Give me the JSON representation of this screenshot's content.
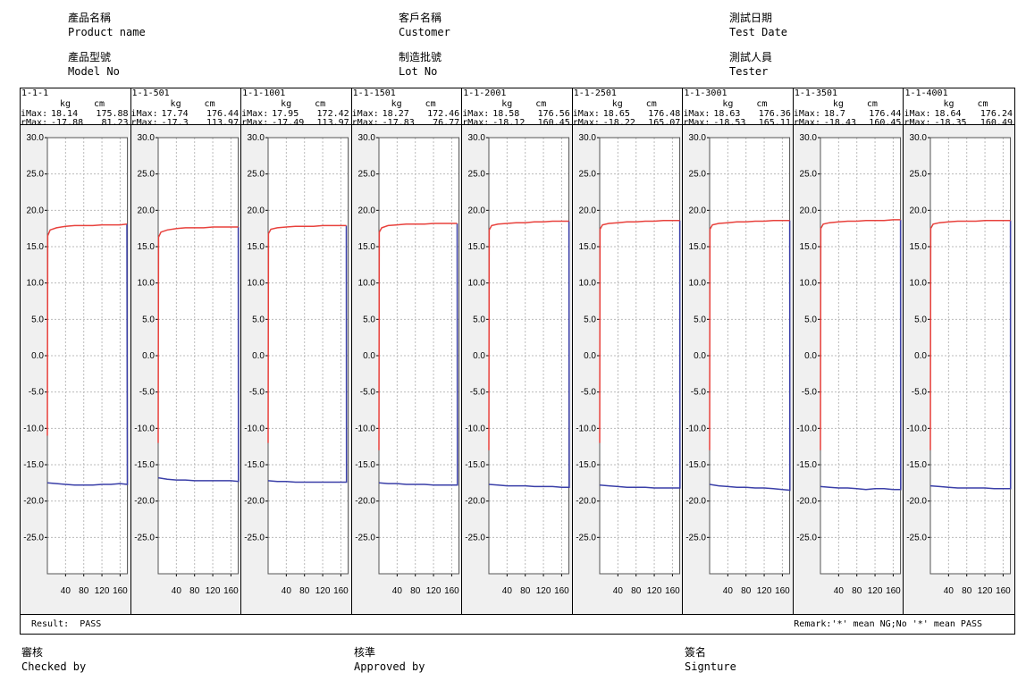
{
  "header": {
    "product_name_cn": "產品名稱",
    "product_name_en": "Product name",
    "model_no_cn": "產品型號",
    "model_no_en": "Model No",
    "customer_cn": "客戶名稱",
    "customer_en": "Customer",
    "lot_no_cn": "制造批號",
    "lot_no_en": "Lot No",
    "test_date_cn": "測試日期",
    "test_date_en": "Test Date",
    "tester_cn": "測試人員",
    "tester_en": "Tester"
  },
  "table": {
    "unit_kg": "kg",
    "unit_cm": "cm",
    "imax_label": "iMax:",
    "rmax_label": "rMax:"
  },
  "panels": [
    {
      "id": "1-1-1",
      "imax_kg": "18.14",
      "imax_cm": "175.88",
      "rmax_kg": "-17.88",
      "rmax_cm": "81.23"
    },
    {
      "id": "1-1-501",
      "imax_kg": "17.74",
      "imax_cm": "176.44",
      "rmax_kg": "-17.3",
      "rmax_cm": "113.97"
    },
    {
      "id": "1-1-1001",
      "imax_kg": "17.95",
      "imax_cm": "172.42",
      "rmax_kg": "-17.49",
      "rmax_cm": "113.97"
    },
    {
      "id": "1-1-1501",
      "imax_kg": "18.27",
      "imax_cm": "172.46",
      "rmax_kg": "-17.83",
      "rmax_cm": "76.77"
    },
    {
      "id": "1-1-2001",
      "imax_kg": "18.58",
      "imax_cm": "176.56",
      "rmax_kg": "-18.12",
      "rmax_cm": "160.45"
    },
    {
      "id": "1-1-2501",
      "imax_kg": "18.65",
      "imax_cm": "176.48",
      "rmax_kg": "-18.22",
      "rmax_cm": "165.07"
    },
    {
      "id": "1-1-3001",
      "imax_kg": "18.63",
      "imax_cm": "176.36",
      "rmax_kg": "-18.53",
      "rmax_cm": "165.11"
    },
    {
      "id": "1-1-3501",
      "imax_kg": "18.7",
      "imax_cm": "176.44",
      "rmax_kg": "-18.43",
      "rmax_cm": "160.45"
    },
    {
      "id": "1-1-4001",
      "imax_kg": "18.64",
      "imax_cm": "176.24",
      "rmax_kg": "-18.35",
      "rmax_cm": "160.49"
    }
  ],
  "chart_data": {
    "type": "line",
    "y_ticks": [
      "30.0",
      "25.0",
      "20.0",
      "15.0",
      "10.0",
      "5.0",
      "0.0",
      "-5.0",
      "-10.0",
      "-15.0",
      "-20.0",
      "-25.0"
    ],
    "x_ticks": [
      "40",
      "80",
      "120",
      "160"
    ],
    "ylim": [
      -30,
      30
    ],
    "xlim": [
      0,
      176
    ],
    "grid": true,
    "colors": {
      "insert": "#e8413c",
      "return": "#3a3fa8",
      "background": "#f0f0f0",
      "grid": "#bbbbbb"
    },
    "series": [
      {
        "values": [
          [
            0,
            -11
          ],
          [
            0.7,
            16.5
          ],
          [
            6,
            17.3
          ],
          [
            20,
            17.6
          ],
          [
            40,
            17.8
          ],
          [
            60,
            17.9
          ],
          [
            80,
            17.9
          ],
          [
            100,
            17.9
          ],
          [
            120,
            18.0
          ],
          [
            140,
            18.0
          ],
          [
            160,
            18.0
          ],
          [
            175,
            18.1
          ],
          [
            175.9,
            -17.7
          ],
          [
            160,
            -17.6
          ],
          [
            140,
            -17.7
          ],
          [
            120,
            -17.7
          ],
          [
            100,
            -17.8
          ],
          [
            80,
            -17.8
          ],
          [
            60,
            -17.8
          ],
          [
            40,
            -17.7
          ],
          [
            20,
            -17.6
          ],
          [
            0,
            -17.5
          ]
        ]
      },
      {
        "values": [
          [
            0,
            -12
          ],
          [
            0.7,
            16.3
          ],
          [
            6,
            17.0
          ],
          [
            20,
            17.3
          ],
          [
            40,
            17.5
          ],
          [
            60,
            17.6
          ],
          [
            80,
            17.6
          ],
          [
            100,
            17.6
          ],
          [
            120,
            17.7
          ],
          [
            140,
            17.7
          ],
          [
            160,
            17.7
          ],
          [
            176,
            17.7
          ],
          [
            176.4,
            -17.3
          ],
          [
            160,
            -17.2
          ],
          [
            140,
            -17.2
          ],
          [
            120,
            -17.2
          ],
          [
            100,
            -17.2
          ],
          [
            80,
            -17.2
          ],
          [
            60,
            -17.1
          ],
          [
            40,
            -17.1
          ],
          [
            20,
            -17.0
          ],
          [
            0,
            -16.8
          ]
        ]
      },
      {
        "values": [
          [
            0,
            -12
          ],
          [
            0.7,
            16.8
          ],
          [
            6,
            17.4
          ],
          [
            20,
            17.6
          ],
          [
            40,
            17.7
          ],
          [
            60,
            17.8
          ],
          [
            80,
            17.8
          ],
          [
            100,
            17.8
          ],
          [
            120,
            17.9
          ],
          [
            140,
            17.9
          ],
          [
            160,
            17.9
          ],
          [
            172,
            17.9
          ],
          [
            172.4,
            -17.4
          ],
          [
            160,
            -17.4
          ],
          [
            140,
            -17.4
          ],
          [
            120,
            -17.4
          ],
          [
            100,
            -17.4
          ],
          [
            80,
            -17.4
          ],
          [
            60,
            -17.4
          ],
          [
            40,
            -17.3
          ],
          [
            20,
            -17.3
          ],
          [
            0,
            -17.2
          ]
        ]
      },
      {
        "values": [
          [
            0,
            -13
          ],
          [
            0.7,
            17.0
          ],
          [
            6,
            17.6
          ],
          [
            20,
            17.9
          ],
          [
            40,
            18.0
          ],
          [
            60,
            18.1
          ],
          [
            80,
            18.1
          ],
          [
            100,
            18.1
          ],
          [
            120,
            18.2
          ],
          [
            140,
            18.2
          ],
          [
            160,
            18.2
          ],
          [
            172,
            18.2
          ],
          [
            172.5,
            -17.8
          ],
          [
            160,
            -17.8
          ],
          [
            140,
            -17.8
          ],
          [
            120,
            -17.8
          ],
          [
            100,
            -17.7
          ],
          [
            80,
            -17.7
          ],
          [
            60,
            -17.7
          ],
          [
            40,
            -17.6
          ],
          [
            20,
            -17.6
          ],
          [
            0,
            -17.5
          ]
        ]
      },
      {
        "values": [
          [
            0,
            -13
          ],
          [
            0.7,
            17.3
          ],
          [
            6,
            17.9
          ],
          [
            20,
            18.1
          ],
          [
            40,
            18.2
          ],
          [
            60,
            18.3
          ],
          [
            80,
            18.3
          ],
          [
            100,
            18.4
          ],
          [
            120,
            18.4
          ],
          [
            140,
            18.5
          ],
          [
            160,
            18.5
          ],
          [
            176,
            18.5
          ],
          [
            176.6,
            -18.1
          ],
          [
            160,
            -18.1
          ],
          [
            140,
            -18.0
          ],
          [
            120,
            -18.0
          ],
          [
            100,
            -18.0
          ],
          [
            80,
            -17.9
          ],
          [
            60,
            -17.9
          ],
          [
            40,
            -17.9
          ],
          [
            20,
            -17.8
          ],
          [
            0,
            -17.7
          ]
        ]
      },
      {
        "values": [
          [
            0,
            -12
          ],
          [
            0.7,
            17.4
          ],
          [
            6,
            18.0
          ],
          [
            20,
            18.2
          ],
          [
            40,
            18.3
          ],
          [
            60,
            18.4
          ],
          [
            80,
            18.4
          ],
          [
            100,
            18.5
          ],
          [
            120,
            18.5
          ],
          [
            140,
            18.6
          ],
          [
            160,
            18.6
          ],
          [
            176,
            18.6
          ],
          [
            176.5,
            -18.2
          ],
          [
            160,
            -18.2
          ],
          [
            140,
            -18.2
          ],
          [
            120,
            -18.2
          ],
          [
            100,
            -18.1
          ],
          [
            80,
            -18.1
          ],
          [
            60,
            -18.1
          ],
          [
            40,
            -18.0
          ],
          [
            20,
            -17.9
          ],
          [
            0,
            -17.8
          ]
        ]
      },
      {
        "values": [
          [
            0,
            -13
          ],
          [
            0.7,
            17.4
          ],
          [
            6,
            18.0
          ],
          [
            20,
            18.2
          ],
          [
            40,
            18.3
          ],
          [
            60,
            18.4
          ],
          [
            80,
            18.4
          ],
          [
            100,
            18.5
          ],
          [
            120,
            18.5
          ],
          [
            140,
            18.6
          ],
          [
            160,
            18.6
          ],
          [
            176,
            18.6
          ],
          [
            176.4,
            -18.5
          ],
          [
            160,
            -18.4
          ],
          [
            140,
            -18.3
          ],
          [
            120,
            -18.2
          ],
          [
            100,
            -18.2
          ],
          [
            80,
            -18.1
          ],
          [
            60,
            -18.1
          ],
          [
            40,
            -18.0
          ],
          [
            20,
            -17.9
          ],
          [
            0,
            -17.7
          ]
        ]
      },
      {
        "values": [
          [
            0,
            -13
          ],
          [
            0.7,
            17.5
          ],
          [
            6,
            18.1
          ],
          [
            20,
            18.3
          ],
          [
            40,
            18.4
          ],
          [
            60,
            18.5
          ],
          [
            80,
            18.5
          ],
          [
            100,
            18.6
          ],
          [
            120,
            18.6
          ],
          [
            140,
            18.6
          ],
          [
            160,
            18.7
          ],
          [
            176,
            18.7
          ],
          [
            176.4,
            -18.4
          ],
          [
            160,
            -18.4
          ],
          [
            140,
            -18.3
          ],
          [
            120,
            -18.3
          ],
          [
            100,
            -18.4
          ],
          [
            80,
            -18.3
          ],
          [
            60,
            -18.2
          ],
          [
            40,
            -18.2
          ],
          [
            20,
            -18.1
          ],
          [
            0,
            -18.0
          ]
        ]
      },
      {
        "values": [
          [
            0,
            -13
          ],
          [
            0.7,
            17.5
          ],
          [
            6,
            18.1
          ],
          [
            20,
            18.3
          ],
          [
            40,
            18.4
          ],
          [
            60,
            18.5
          ],
          [
            80,
            18.5
          ],
          [
            100,
            18.5
          ],
          [
            120,
            18.6
          ],
          [
            140,
            18.6
          ],
          [
            160,
            18.6
          ],
          [
            176,
            18.6
          ],
          [
            176.2,
            -18.3
          ],
          [
            160,
            -18.3
          ],
          [
            140,
            -18.3
          ],
          [
            120,
            -18.2
          ],
          [
            100,
            -18.2
          ],
          [
            80,
            -18.2
          ],
          [
            60,
            -18.2
          ],
          [
            40,
            -18.1
          ],
          [
            20,
            -18.0
          ],
          [
            0,
            -17.9
          ]
        ]
      }
    ]
  },
  "result": {
    "label": "Result:",
    "value": "PASS",
    "remark": "Remark:'*' mean NG;No '*' mean PASS"
  },
  "footer": {
    "checked_cn": "審核",
    "checked_en": "Checked by",
    "approved_cn": "核準",
    "approved_en": "Approved by",
    "signature_cn": "簽名",
    "signature_en": "Signture"
  }
}
